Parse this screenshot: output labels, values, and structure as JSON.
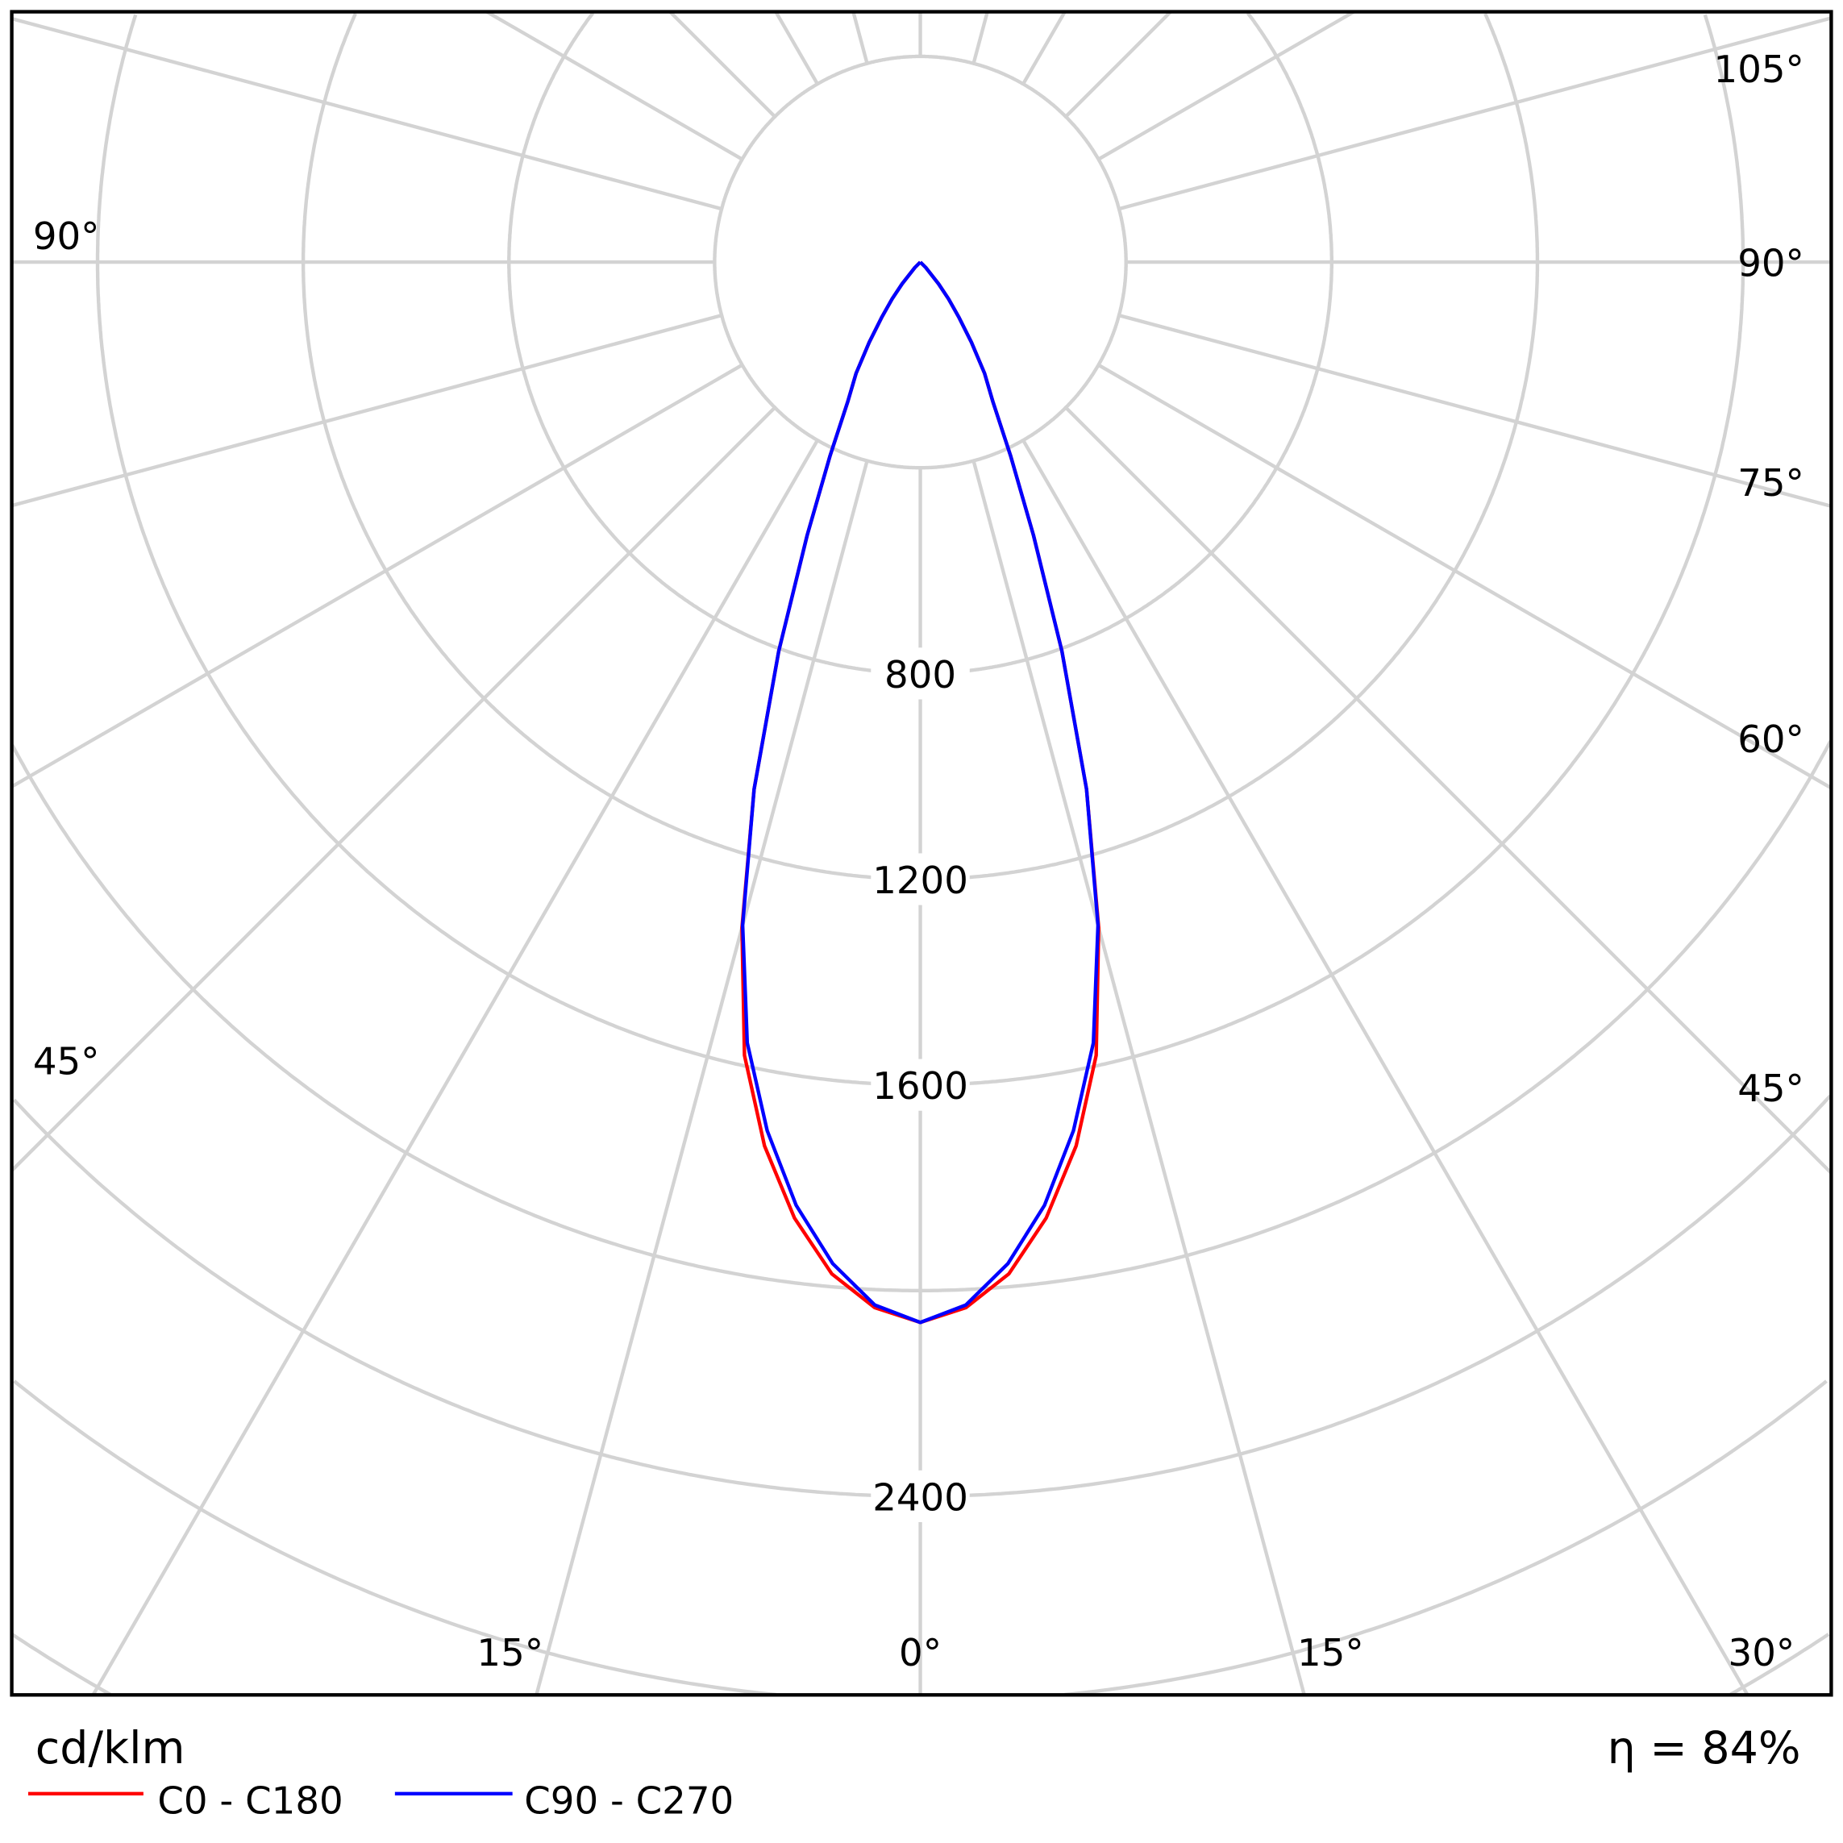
{
  "chart_data": {
    "type": "polar-line",
    "unit_label": "cd/klm",
    "efficiency_label": "η = 84%",
    "grid": true,
    "radial_range": [
      0,
      3600
    ],
    "radial_grid_step": 400,
    "radial_tick_labels": [
      {
        "value": 800,
        "text": "800"
      },
      {
        "value": 1200,
        "text": "1200"
      },
      {
        "value": 1600,
        "text": "1600"
      },
      {
        "value": 2400,
        "text": "2400"
      }
    ],
    "angle_grid_step_deg": 15,
    "angle_tick_labels": {
      "right_105": "105°",
      "right_90": "90°",
      "right_75": "75°",
      "right_60": "60°",
      "right_45": "45°",
      "right_30": "30°",
      "right_15": "15°",
      "zero": "0°",
      "left_15": "15°",
      "left_45": "45°",
      "left_90": "90°"
    },
    "legend_position": "bottom-left",
    "series": [
      {
        "name": "C0 - C180",
        "color": "#ff0000",
        "angles": [
          0,
          2.5,
          5,
          7.5,
          10,
          12.5,
          15,
          17.5,
          20,
          22.5,
          25,
          27.5,
          30,
          32.5,
          35,
          37.5,
          40,
          45,
          50,
          90
        ],
        "values": [
          2062,
          2035,
          1975,
          1875,
          1745,
          1580,
          1340,
          1075,
          805,
          575,
          415,
          305,
          250,
          185,
          130,
          90,
          55,
          15,
          0,
          0
        ]
      },
      {
        "name": "C90 - C270",
        "color": "#0000ff",
        "angles": [
          0,
          2.5,
          5,
          7.5,
          10,
          12.5,
          15,
          17.5,
          20,
          22.5,
          25,
          27.5,
          30,
          32.5,
          35,
          37.5,
          40,
          45,
          50,
          90
        ],
        "values": [
          2062,
          2030,
          1955,
          1850,
          1715,
          1555,
          1335,
          1075,
          805,
          575,
          415,
          305,
          250,
          185,
          130,
          90,
          55,
          15,
          0,
          0
        ]
      }
    ]
  }
}
